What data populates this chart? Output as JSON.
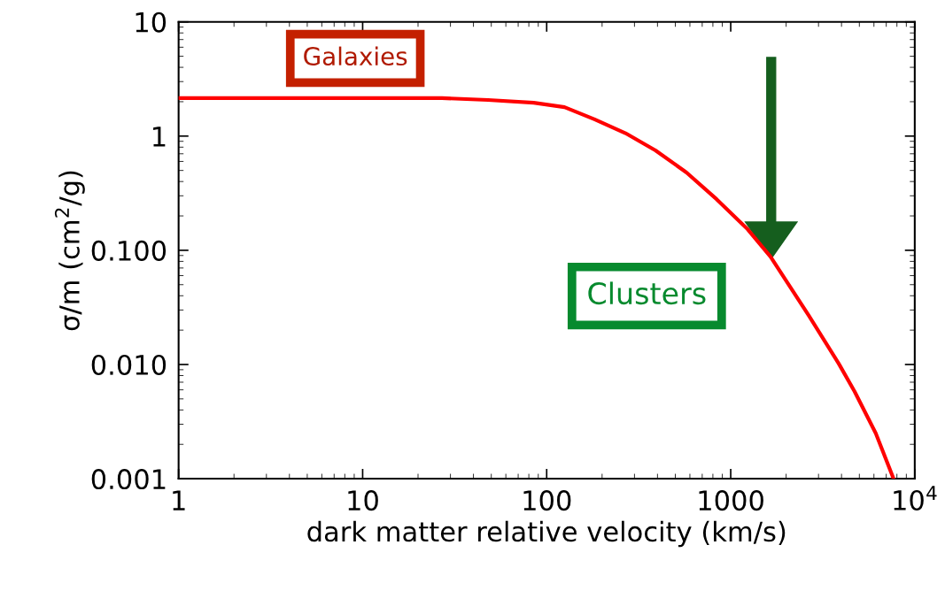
{
  "chart_data": {
    "type": "line",
    "xlabel": "dark matter relative velocity (km/s)",
    "ylabel": "σ/m (cm$^{2}$/g)",
    "log": "xy",
    "xlim": [
      1,
      10000
    ],
    "ylim": [
      0.001,
      10
    ],
    "xticks": [
      1,
      10,
      100,
      1000,
      {
        "value": 10000,
        "label": "10$^{4}$"
      }
    ],
    "yticks": [
      {
        "value": 0.001,
        "label": "0.001"
      },
      {
        "value": 0.01,
        "label": "0.010"
      },
      {
        "value": 0.1,
        "label": "0.100"
      },
      1,
      10
    ],
    "grid": false,
    "legend": false,
    "series": [
      {
        "color": "#ff0000",
        "x": [
          1,
          5,
          10,
          27,
          48,
          85,
          125,
          182,
          268,
          390,
          575,
          838,
          1235,
          1645,
          2650,
          3860,
          4710,
          6140,
          7670
        ],
        "values": [
          2.15,
          2.15,
          2.15,
          2.15,
          2.07,
          1.96,
          1.79,
          1.4,
          1.06,
          0.75,
          0.48,
          0.28,
          0.153,
          0.088,
          0.027,
          0.0102,
          0.0058,
          0.0025,
          0.001
        ]
      }
    ],
    "annotations": [
      "Galaxies",
      "Clusters"
    ]
  }
}
